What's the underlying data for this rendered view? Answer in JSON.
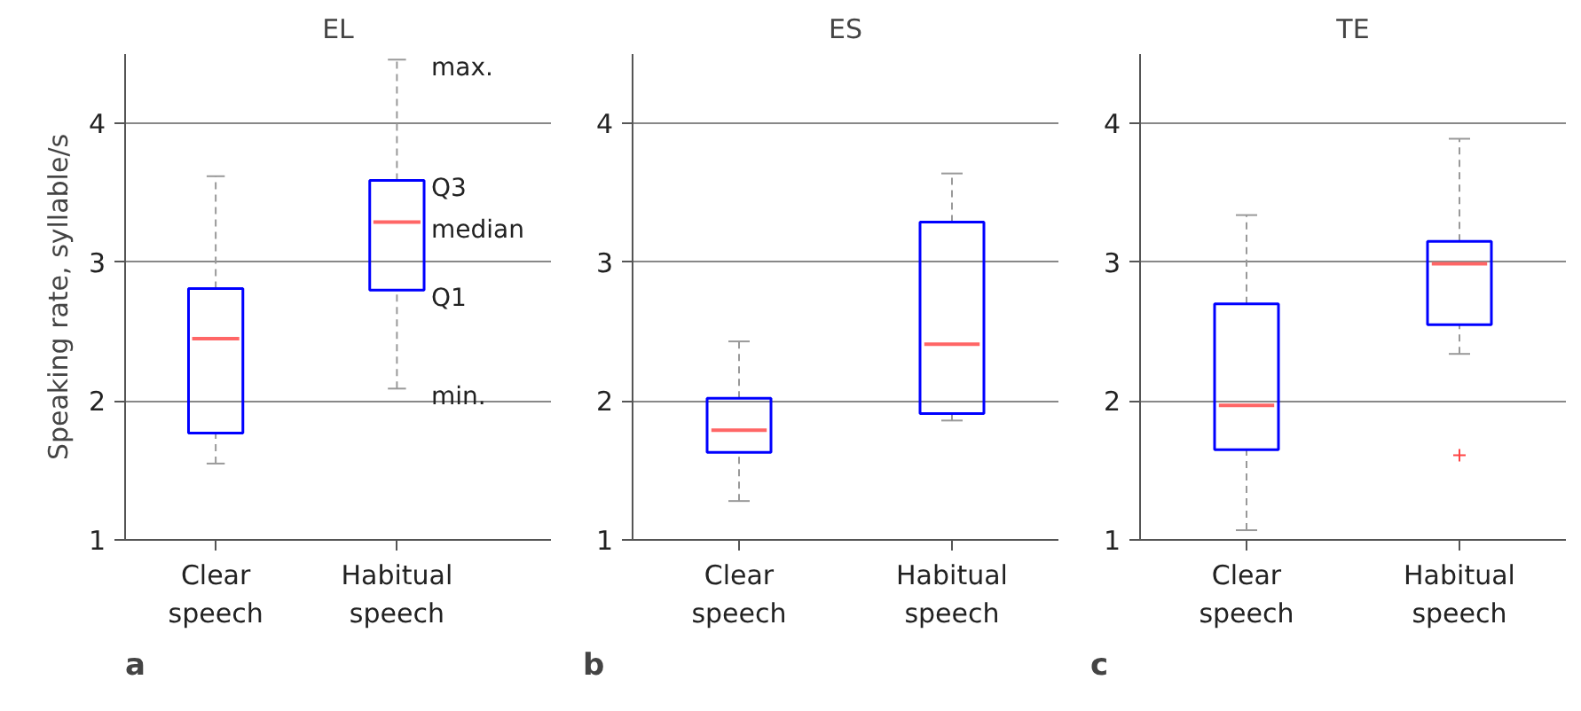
{
  "chart_data": [
    {
      "type": "box",
      "title": "EL",
      "ylabel": "Speaking rate, syllable/s",
      "categories": [
        "Clear\nspeech",
        "Habitual\nspeech"
      ],
      "ylim": [
        1,
        4.5
      ],
      "yticks": [
        1,
        2,
        3,
        4
      ],
      "grid": "y",
      "series": [
        {
          "color": "#0000ff",
          "boxes": [
            {
              "low": 1.55,
              "q1": 1.77,
              "median": 2.45,
              "q3": 2.81,
              "high": 3.62
            },
            {
              "low": 2.09,
              "q1": 2.8,
              "median": 3.29,
              "q3": 3.59,
              "high": 4.46
            }
          ]
        }
      ],
      "annotations": [
        {
          "text": "max.",
          "x": "Habitual\nspeech",
          "y": 4.46
        },
        {
          "text": "Q3",
          "x": "Habitual\nspeech",
          "y": 3.59
        },
        {
          "text": "median",
          "x": "Habitual\nspeech",
          "y": 3.29
        },
        {
          "text": "Q1",
          "x": "Habitual\nspeech",
          "y": 2.8
        },
        {
          "text": "min.",
          "x": "Habitual\nspeech",
          "y": 2.09
        },
        "a"
      ]
    },
    {
      "type": "box",
      "title": "ES",
      "categories": [
        "Clear\nspeech",
        "Habitual\nspeech"
      ],
      "ylim": [
        1,
        4.5
      ],
      "yticks": [
        1,
        2,
        3,
        4
      ],
      "grid": "y",
      "series": [
        {
          "color": "#0000ff",
          "boxes": [
            {
              "low": 1.28,
              "q1": 1.63,
              "median": 1.79,
              "q3": 2.02,
              "high": 2.43
            },
            {
              "low": 1.86,
              "q1": 1.91,
              "median": 2.41,
              "q3": 3.29,
              "high": 3.64
            }
          ]
        }
      ],
      "annotations": [
        "b"
      ]
    },
    {
      "type": "box",
      "title": "TE",
      "categories": [
        "Clear\nspeech",
        "Habitual\nspeech"
      ],
      "ylim": [
        1,
        4.5
      ],
      "yticks": [
        1,
        2,
        3,
        4
      ],
      "grid": "y",
      "series": [
        {
          "color": "#0000ff",
          "boxes": [
            {
              "low": 1.07,
              "q1": 1.65,
              "median": 1.97,
              "q3": 2.7,
              "high": 3.34
            },
            {
              "low": 2.34,
              "q1": 2.55,
              "median": 2.99,
              "q3": 3.15,
              "high": 3.89,
              "outliers": [
                1.61
              ]
            }
          ]
        }
      ],
      "annotations": [
        "c"
      ]
    }
  ]
}
